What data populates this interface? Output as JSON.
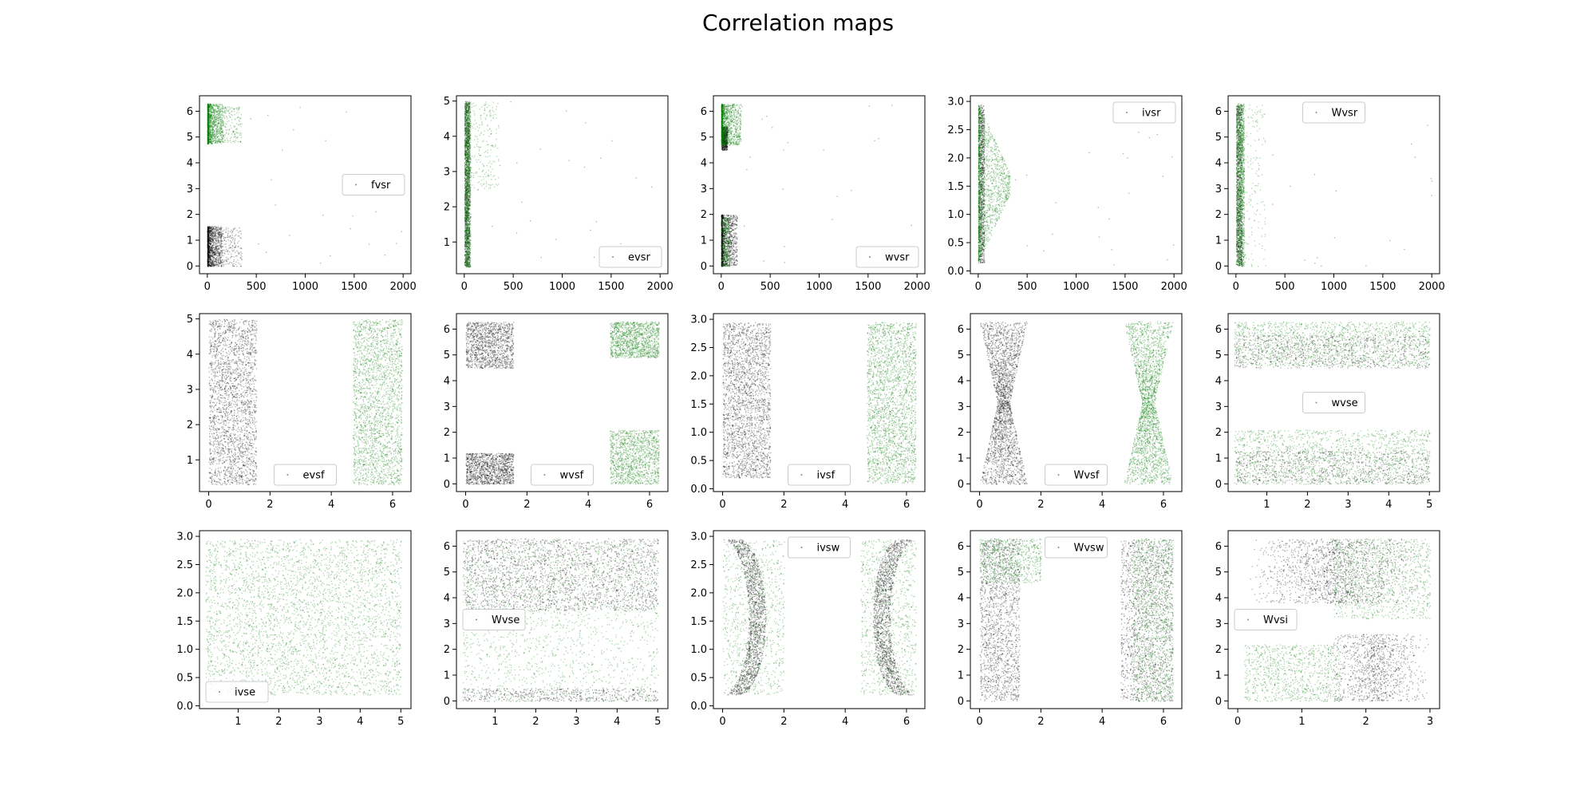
{
  "figure": {
    "title": "Correlation maps"
  },
  "colors": {
    "black_series": "#000000",
    "green_series": "#007a00"
  },
  "chart_data": [
    {
      "type": "scatter",
      "legend": "fvsr",
      "legend_loc": "center-right",
      "xticks": [
        "0",
        "500",
        "1000",
        "1500",
        "2000"
      ],
      "yticks": [
        "0",
        "1",
        "2",
        "3",
        "4",
        "5",
        "6"
      ],
      "xlim": [
        -80,
        2080
      ],
      "ylim": [
        -0.3,
        6.6
      ],
      "clouds": [
        {
          "color": "black",
          "xr": [
            0,
            150
          ],
          "yr": [
            0,
            1.55
          ],
          "n": 1400,
          "shape": "wedge"
        },
        {
          "color": "black",
          "xr": [
            150,
            350
          ],
          "yr": [
            0,
            1.5
          ],
          "n": 160
        },
        {
          "color": "green",
          "xr": [
            0,
            160
          ],
          "yr": [
            4.75,
            6.3
          ],
          "n": 1400,
          "shape": "wedge"
        },
        {
          "color": "green",
          "xr": [
            150,
            350
          ],
          "yr": [
            4.8,
            6.2
          ],
          "n": 160
        },
        {
          "color": "black",
          "xr": [
            350,
            2000
          ],
          "yr": [
            0,
            6.3
          ],
          "n": 22
        }
      ]
    },
    {
      "type": "scatter",
      "legend": "evsr",
      "legend_loc": "lower-right",
      "xticks": [
        "0",
        "500",
        "1000",
        "1500",
        "2000"
      ],
      "yticks": [
        "1",
        "2",
        "3",
        "4",
        "5"
      ],
      "xlim": [
        -80,
        2080
      ],
      "ylim": [
        0.1,
        5.15
      ],
      "clouds": [
        {
          "color": "black",
          "xr": [
            0,
            50
          ],
          "yr": [
            0.3,
            5
          ],
          "n": 1100
        },
        {
          "color": "green",
          "xr": [
            0,
            60
          ],
          "yr": [
            0.3,
            5
          ],
          "n": 1500
        },
        {
          "color": "green",
          "xr": [
            60,
            350
          ],
          "yr": [
            2.5,
            5
          ],
          "n": 200
        },
        {
          "color": "black",
          "xr": [
            60,
            2000
          ],
          "yr": [
            0.3,
            5
          ],
          "n": 25
        }
      ]
    },
    {
      "type": "scatter",
      "legend": "wvsr",
      "legend_loc": "lower-right",
      "xticks": [
        "0",
        "500",
        "1000",
        "1500",
        "2000"
      ],
      "yticks": [
        "0",
        "1",
        "2",
        "3",
        "4",
        "5",
        "6"
      ],
      "xlim": [
        -80,
        2080
      ],
      "ylim": [
        -0.3,
        6.6
      ],
      "clouds": [
        {
          "color": "black",
          "xr": [
            0,
            160
          ],
          "yr": [
            0,
            2
          ],
          "n": 1400,
          "shape": "wedge"
        },
        {
          "color": "black",
          "xr": [
            0,
            60
          ],
          "yr": [
            4.5,
            5.4
          ],
          "n": 500
        },
        {
          "color": "green",
          "xr": [
            0,
            200
          ],
          "yr": [
            4.7,
            6.3
          ],
          "n": 1400,
          "shape": "wedge"
        },
        {
          "color": "green",
          "xr": [
            0,
            80
          ],
          "yr": [
            0,
            1.9
          ],
          "n": 350
        },
        {
          "color": "black",
          "xr": [
            200,
            2000
          ],
          "yr": [
            0,
            6.3
          ],
          "n": 22
        }
      ]
    },
    {
      "type": "scatter",
      "legend": "ivsr",
      "legend_loc": "upper-right",
      "xticks": [
        "0",
        "500",
        "1000",
        "1500",
        "2000"
      ],
      "yticks": [
        "0.0",
        "0.5",
        "1.0",
        "1.5",
        "2.0",
        "2.5",
        "3.0"
      ],
      "xlim": [
        -80,
        2080
      ],
      "ylim": [
        -0.05,
        3.1
      ],
      "clouds": [
        {
          "color": "black",
          "xr": [
            0,
            60
          ],
          "yr": [
            0.15,
            2.95
          ],
          "n": 900
        },
        {
          "color": "green",
          "xr": [
            0,
            320
          ],
          "yr": [
            0.15,
            2.95
          ],
          "n": 1700,
          "shape": "funnel"
        },
        {
          "color": "black",
          "xr": [
            300,
            2000
          ],
          "yr": [
            0,
            3
          ],
          "n": 22
        }
      ]
    },
    {
      "type": "scatter",
      "legend": "Wvsr",
      "legend_loc": "upper-center",
      "xticks": [
        "0",
        "500",
        "1000",
        "1500",
        "2000"
      ],
      "yticks": [
        "0",
        "1",
        "2",
        "3",
        "4",
        "5",
        "6"
      ],
      "xlim": [
        -80,
        2080
      ],
      "ylim": [
        -0.3,
        6.6
      ],
      "clouds": [
        {
          "color": "black",
          "xr": [
            0,
            60
          ],
          "yr": [
            0,
            6.3
          ],
          "n": 900
        },
        {
          "color": "green",
          "xr": [
            0,
            80
          ],
          "yr": [
            0,
            6.3
          ],
          "n": 1500
        },
        {
          "color": "green",
          "xr": [
            80,
            300
          ],
          "yr": [
            0,
            6.3
          ],
          "n": 150
        },
        {
          "color": "black",
          "xr": [
            300,
            2000
          ],
          "yr": [
            0,
            6.3
          ],
          "n": 20
        }
      ]
    },
    {
      "type": "scatter",
      "legend": "evsf",
      "legend_loc": "lower-center",
      "xticks": [
        "0",
        "2",
        "4",
        "6"
      ],
      "yticks": [
        "1",
        "2",
        "3",
        "4",
        "5"
      ],
      "xlim": [
        -0.3,
        6.6
      ],
      "ylim": [
        0.1,
        5.15
      ],
      "clouds": [
        {
          "color": "black",
          "xr": [
            0,
            1.55
          ],
          "yr": [
            0.3,
            5
          ],
          "n": 2300
        },
        {
          "color": "green",
          "xr": [
            4.7,
            6.3
          ],
          "yr": [
            0.3,
            5
          ],
          "n": 2300
        }
      ]
    },
    {
      "type": "scatter",
      "legend": "wvsf",
      "legend_loc": "lower-center",
      "xticks": [
        "0",
        "2",
        "4",
        "6"
      ],
      "yticks": [
        "0",
        "1",
        "2",
        "3",
        "4",
        "5",
        "6"
      ],
      "xlim": [
        -0.3,
        6.6
      ],
      "ylim": [
        -0.3,
        6.6
      ],
      "clouds": [
        {
          "color": "black",
          "xr": [
            0,
            1.55
          ],
          "yr": [
            4.5,
            6.3
          ],
          "n": 1300
        },
        {
          "color": "black",
          "xr": [
            0,
            1.55
          ],
          "yr": [
            0,
            1.2
          ],
          "n": 1300
        },
        {
          "color": "green",
          "xr": [
            4.7,
            6.3
          ],
          "yr": [
            4.9,
            6.3
          ],
          "n": 1300
        },
        {
          "color": "green",
          "xr": [
            4.7,
            6.3
          ],
          "yr": [
            0,
            2.1
          ],
          "n": 1300
        }
      ]
    },
    {
      "type": "scatter",
      "legend": "ivsf",
      "legend_loc": "lower-center",
      "xticks": [
        "0",
        "2",
        "4",
        "6"
      ],
      "yticks": [
        "0.0",
        "0.5",
        "1.0",
        "1.5",
        "2.0",
        "2.5",
        "3.0"
      ],
      "xlim": [
        -0.3,
        6.6
      ],
      "ylim": [
        -0.05,
        3.1
      ],
      "clouds": [
        {
          "color": "black",
          "xr": [
            0,
            1.55
          ],
          "yr": [
            0.2,
            2.95
          ],
          "n": 2400
        },
        {
          "color": "green",
          "xr": [
            4.7,
            6.3
          ],
          "yr": [
            0.1,
            2.95
          ],
          "n": 2400
        }
      ]
    },
    {
      "type": "scatter",
      "legend": "Wvsf",
      "legend_loc": "lower-center",
      "xticks": [
        "0",
        "2",
        "4",
        "6"
      ],
      "yticks": [
        "0",
        "1",
        "2",
        "3",
        "4",
        "5",
        "6"
      ],
      "xlim": [
        -0.3,
        6.6
      ],
      "ylim": [
        -0.3,
        6.6
      ],
      "clouds": [
        {
          "color": "black",
          "xr": [
            0,
            1.55
          ],
          "yr": [
            0,
            6.3
          ],
          "n": 2400,
          "shape": "hourglass"
        },
        {
          "color": "green",
          "xr": [
            4.7,
            6.3
          ],
          "yr": [
            0,
            6.3
          ],
          "n": 2400,
          "shape": "hourglass"
        }
      ]
    },
    {
      "type": "scatter",
      "legend": "wvse",
      "legend_loc": "center",
      "xticks": [
        "1",
        "2",
        "3",
        "4",
        "5"
      ],
      "yticks": [
        "0",
        "1",
        "2",
        "3",
        "4",
        "5",
        "6"
      ],
      "xlim": [
        0.05,
        5.25
      ],
      "ylim": [
        -0.3,
        6.6
      ],
      "clouds": [
        {
          "color": "green",
          "xr": [
            0.2,
            5
          ],
          "yr": [
            4.6,
            6.3
          ],
          "n": 1600
        },
        {
          "color": "black",
          "xr": [
            0.2,
            5
          ],
          "yr": [
            4.5,
            5.8
          ],
          "n": 800
        },
        {
          "color": "green",
          "xr": [
            0.2,
            5
          ],
          "yr": [
            0,
            2.1
          ],
          "n": 1600
        },
        {
          "color": "black",
          "xr": [
            0.2,
            5
          ],
          "yr": [
            0,
            1.3
          ],
          "n": 800
        }
      ]
    },
    {
      "type": "scatter",
      "legend": "ivse",
      "legend_loc": "lower-left",
      "xticks": [
        "1",
        "2",
        "3",
        "4",
        "5"
      ],
      "yticks": [
        "0.0",
        "0.5",
        "1.0",
        "1.5",
        "2.0",
        "2.5",
        "3.0"
      ],
      "xlim": [
        0.05,
        5.25
      ],
      "ylim": [
        -0.05,
        3.1
      ],
      "clouds": [
        {
          "color": "green",
          "xr": [
            0.2,
            5
          ],
          "yr": [
            0.2,
            2.95
          ],
          "n": 3600
        }
      ]
    },
    {
      "type": "scatter",
      "legend": "Wvse",
      "legend_loc": "center-left",
      "xticks": [
        "1",
        "2",
        "3",
        "4",
        "5"
      ],
      "yticks": [
        "0",
        "1",
        "2",
        "3",
        "4",
        "5",
        "6"
      ],
      "xlim": [
        0.05,
        5.25
      ],
      "ylim": [
        -0.3,
        6.6
      ],
      "clouds": [
        {
          "color": "black",
          "xr": [
            0.2,
            5
          ],
          "yr": [
            3.5,
            6.3
          ],
          "n": 2200
        },
        {
          "color": "green",
          "xr": [
            0.2,
            5
          ],
          "yr": [
            0,
            6.3
          ],
          "n": 1800
        },
        {
          "color": "black",
          "xr": [
            0.2,
            5
          ],
          "yr": [
            0,
            0.5
          ],
          "n": 500
        }
      ]
    },
    {
      "type": "scatter",
      "legend": "ivsw",
      "legend_loc": "upper-center",
      "xticks": [
        "0",
        "2",
        "4",
        "6"
      ],
      "yticks": [
        "0.0",
        "0.5",
        "1.0",
        "1.5",
        "2.0",
        "2.5",
        "3.0"
      ],
      "xlim": [
        -0.3,
        6.6
      ],
      "ylim": [
        -0.05,
        3.1
      ],
      "clouds": [
        {
          "color": "black",
          "xr": [
            0,
            1.6
          ],
          "yr": [
            0.2,
            2.95
          ],
          "n": 1500,
          "shape": "arcL"
        },
        {
          "color": "green",
          "xr": [
            0,
            2
          ],
          "yr": [
            0.2,
            2.95
          ],
          "n": 900
        },
        {
          "color": "black",
          "xr": [
            4.7,
            6.3
          ],
          "yr": [
            0.2,
            2.95
          ],
          "n": 1500,
          "shape": "arcR"
        },
        {
          "color": "green",
          "xr": [
            4.5,
            6.3
          ],
          "yr": [
            0.2,
            2.95
          ],
          "n": 900
        }
      ]
    },
    {
      "type": "scatter",
      "legend": "Wvsw",
      "legend_loc": "upper-center",
      "xticks": [
        "0",
        "2",
        "4",
        "6"
      ],
      "yticks": [
        "0",
        "1",
        "2",
        "3",
        "4",
        "5",
        "6"
      ],
      "xlim": [
        -0.3,
        6.6
      ],
      "ylim": [
        -0.3,
        6.6
      ],
      "clouds": [
        {
          "color": "black",
          "xr": [
            0,
            1.3
          ],
          "yr": [
            0,
            6.3
          ],
          "n": 1600
        },
        {
          "color": "green",
          "xr": [
            0,
            2
          ],
          "yr": [
            4.6,
            6.3
          ],
          "n": 700
        },
        {
          "color": "black",
          "xr": [
            4.6,
            6.3
          ],
          "yr": [
            0,
            6.3
          ],
          "n": 1600
        },
        {
          "color": "green",
          "xr": [
            5,
            6.3
          ],
          "yr": [
            0,
            6.3
          ],
          "n": 1200
        }
      ]
    },
    {
      "type": "scatter",
      "legend": "Wvsi",
      "legend_loc": "center-left",
      "xticks": [
        "0",
        "1",
        "2",
        "3"
      ],
      "yticks": [
        "0",
        "1",
        "2",
        "3",
        "4",
        "5",
        "6"
      ],
      "xlim": [
        -0.15,
        3.15
      ],
      "ylim": [
        -0.3,
        6.6
      ],
      "clouds": [
        {
          "color": "black",
          "xr": [
            0.1,
            3
          ],
          "yr": [
            3.8,
            6.3
          ],
          "n": 1600,
          "shape": "cross"
        },
        {
          "color": "green",
          "xr": [
            1.5,
            3
          ],
          "yr": [
            3.2,
            6.3
          ],
          "n": 1000
        },
        {
          "color": "green",
          "xr": [
            0.1,
            1.6
          ],
          "yr": [
            0,
            2.2
          ],
          "n": 900
        },
        {
          "color": "black",
          "xr": [
            1.3,
            3
          ],
          "yr": [
            0,
            2.6
          ],
          "n": 1100,
          "shape": "cross"
        }
      ]
    }
  ]
}
